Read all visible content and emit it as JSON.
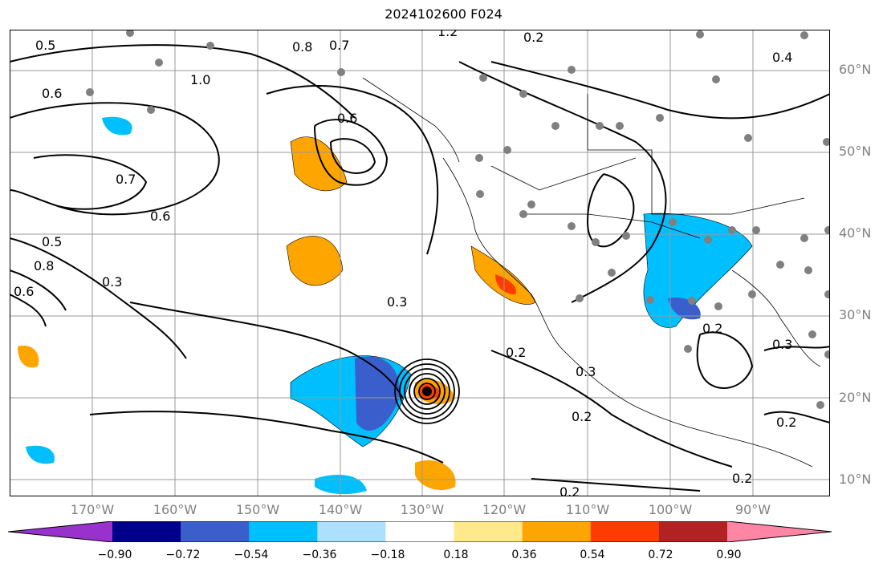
{
  "title": "2024102600 F024",
  "lat_labels": [
    "60°N",
    "50°N",
    "40°N",
    "30°N",
    "20°N",
    "10°N"
  ],
  "lon_labels": [
    "170°W",
    "160°W",
    "150°W",
    "140°W",
    "130°W",
    "120°W",
    "110°W",
    "100°W",
    "90°W"
  ],
  "contour_labels": [
    "0.5",
    "0.6",
    "1.0",
    "0.8",
    "0.7",
    "1.2",
    "0.2",
    "0.4",
    "0.6",
    "0.7",
    "0.6",
    "0.5",
    "0.8",
    "0.6",
    "0.3",
    "0.3",
    "0.2",
    "0.3",
    "0.2",
    "0.2",
    "0.3",
    "0.2",
    "0.2",
    "0.2"
  ],
  "colorbar": {
    "ticks": [
      "−0.90",
      "−0.72",
      "−0.54",
      "−0.36",
      "−0.18",
      "0.18",
      "0.36",
      "0.54",
      "0.72",
      "0.90"
    ],
    "colors": [
      "#9932CC",
      "#00008B",
      "#3A5FCD",
      "#00BFFF",
      "#ADE0FF",
      "#FFFFFF",
      "#FFE98A",
      "#FFA500",
      "#FF3C00",
      "#B22222",
      "#FF85A5"
    ]
  },
  "colors": {
    "frame": "#000000",
    "grid": "#999999",
    "station": "#808080"
  }
}
